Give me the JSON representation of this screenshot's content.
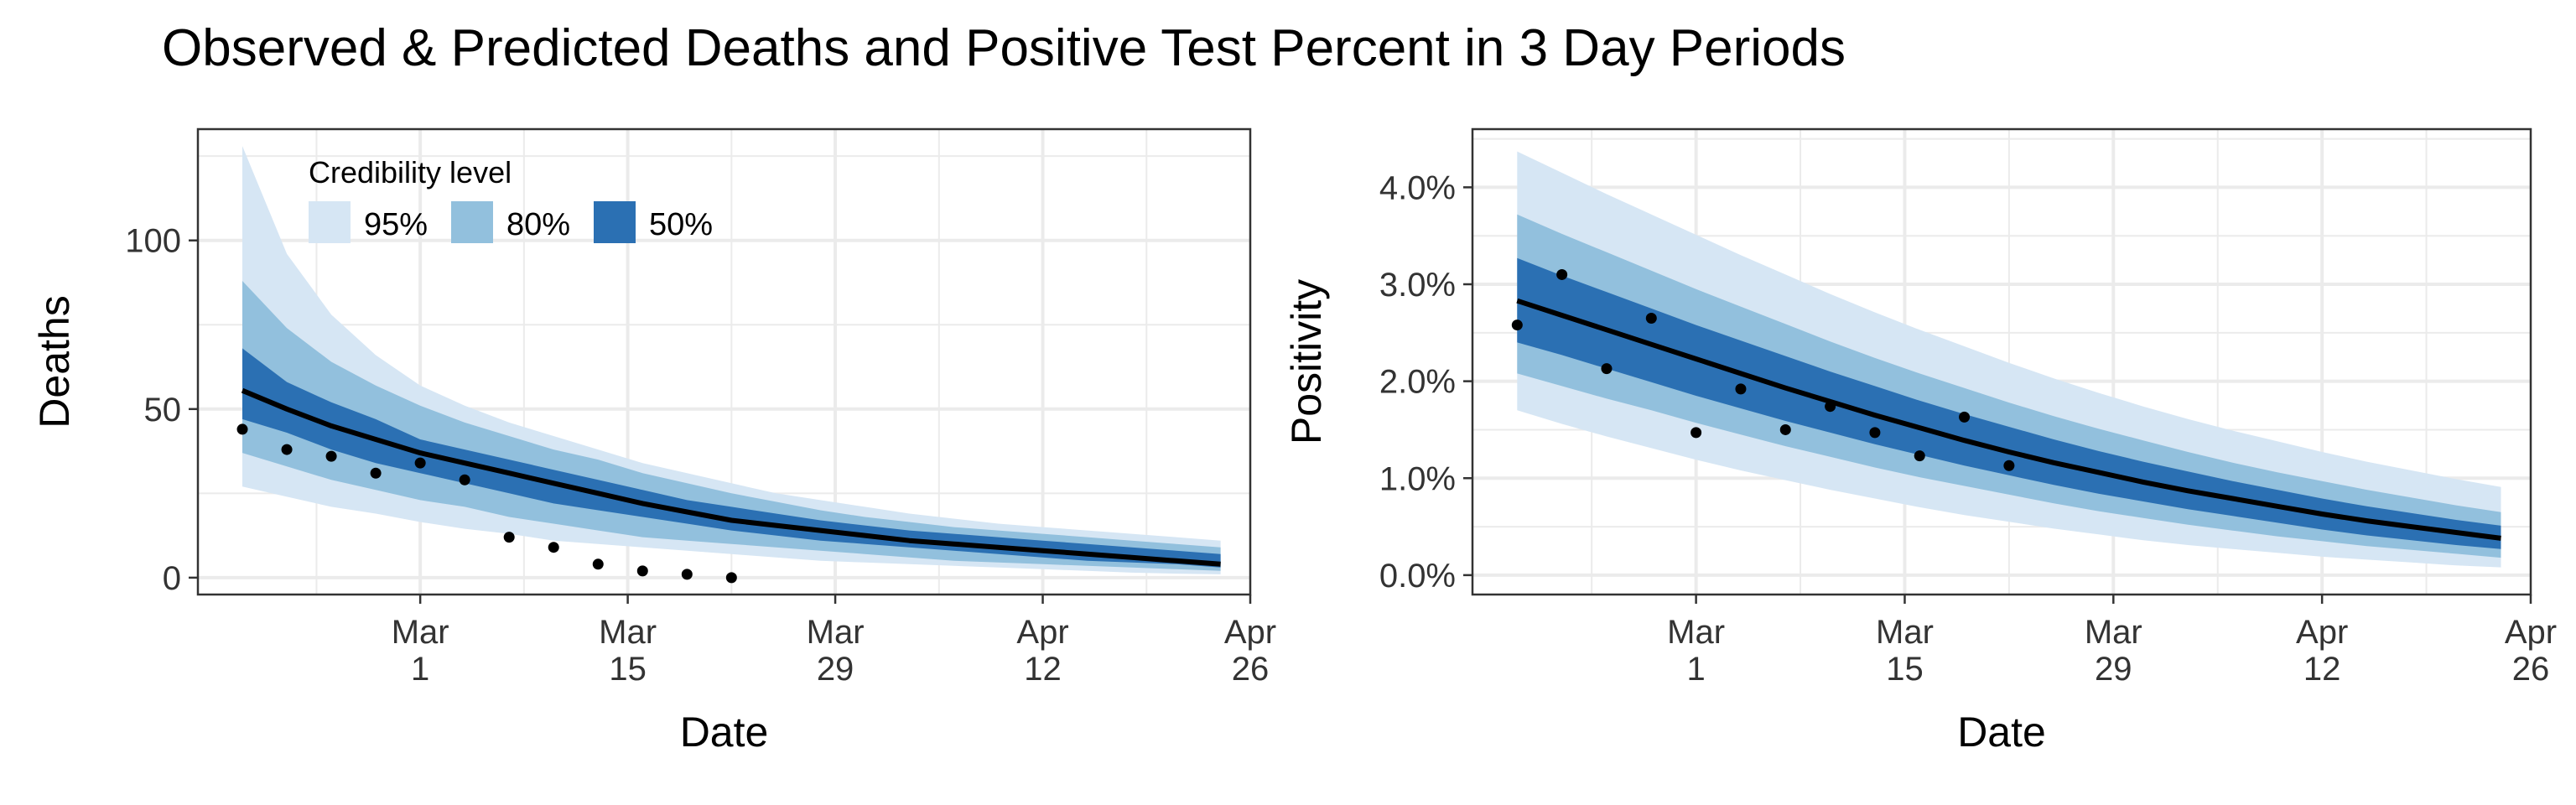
{
  "title": "Observed & Predicted Deaths and Positive Test Percent in 3 Day Periods",
  "colors": {
    "band95": "#d6e6f4",
    "band80": "#92c0dd",
    "band50": "#2b70b3",
    "median": "#000000",
    "points": "#000000"
  },
  "legend": {
    "title": "Credibility level",
    "placement": "top-left inside left panel",
    "entries": [
      {
        "label": "95%",
        "color": "#d6e6f4"
      },
      {
        "label": "80%",
        "color": "#92c0dd"
      },
      {
        "label": "50%",
        "color": "#2b70b3"
      }
    ]
  },
  "chart_data": [
    {
      "type": "area",
      "xlabel": "Date",
      "ylabel": "Deaths",
      "xlim": [
        "2021-02-14",
        "2021-04-26"
      ],
      "ylim": [
        -5,
        133
      ],
      "x_ticks": [
        {
          "date": "2021-03-01",
          "label": "Mar\n1"
        },
        {
          "date": "2021-03-15",
          "label": "Mar\n15"
        },
        {
          "date": "2021-03-29",
          "label": "Mar\n29"
        },
        {
          "date": "2021-04-12",
          "label": "Apr\n12"
        },
        {
          "date": "2021-04-26",
          "label": "Apr\n26"
        }
      ],
      "y_ticks": [
        {
          "value": 0,
          "label": "0"
        },
        {
          "value": 50,
          "label": "50"
        },
        {
          "value": 100,
          "label": "100"
        }
      ],
      "grid": true,
      "x": [
        "2021-02-17",
        "2021-02-20",
        "2021-02-23",
        "2021-02-26",
        "2021-03-01",
        "2021-03-04",
        "2021-03-07",
        "2021-03-10",
        "2021-03-13",
        "2021-03-16",
        "2021-03-19",
        "2021-03-22",
        "2021-03-25",
        "2021-03-28",
        "2021-03-31",
        "2021-04-03",
        "2021-04-06",
        "2021-04-09",
        "2021-04-12",
        "2021-04-15",
        "2021-04-18",
        "2021-04-21",
        "2021-04-24"
      ],
      "median": [
        55.5,
        50,
        45,
        41,
        37,
        34,
        31,
        28,
        25,
        22,
        19.5,
        17,
        15.5,
        14,
        12.5,
        11,
        10,
        9,
        8,
        7,
        6,
        5,
        4
      ],
      "band50": {
        "lower": [
          47,
          43,
          38,
          34,
          31,
          28,
          25,
          22,
          20,
          18,
          16,
          14,
          12.5,
          11,
          10,
          9,
          8,
          7,
          6,
          5,
          4.5,
          4,
          3
        ],
        "upper": [
          68,
          58,
          52,
          47,
          41,
          38,
          35,
          32,
          29,
          26,
          23,
          21,
          19,
          17,
          15.5,
          14,
          13,
          12,
          11,
          10,
          9,
          8,
          7
        ]
      },
      "band80": {
        "lower": [
          37,
          33,
          29,
          26,
          23,
          21,
          18,
          16,
          14,
          12,
          11,
          10,
          9,
          8,
          7,
          6,
          5,
          4.5,
          4,
          3.5,
          3,
          2.5,
          2
        ],
        "upper": [
          88,
          74,
          64,
          57,
          51,
          46,
          42,
          38,
          35,
          31,
          28,
          25,
          22.5,
          20,
          18,
          16.5,
          15,
          14,
          13,
          12,
          11,
          10,
          9
        ]
      },
      "band95": {
        "lower": [
          27,
          24,
          21,
          19,
          16.5,
          14.5,
          13,
          11,
          10,
          9,
          8,
          7,
          6,
          5,
          4.5,
          4,
          3.5,
          3,
          2.5,
          2,
          1.5,
          1.2,
          1
        ],
        "upper": [
          128,
          96,
          78,
          66,
          57,
          51,
          46,
          42,
          38,
          34,
          31,
          28,
          25,
          23,
          21,
          19,
          17.5,
          16,
          15,
          14,
          13,
          12,
          11
        ]
      },
      "points": [
        {
          "x": "2021-02-17",
          "y": 44
        },
        {
          "x": "2021-02-20",
          "y": 38
        },
        {
          "x": "2021-02-23",
          "y": 36
        },
        {
          "x": "2021-02-26",
          "y": 31
        },
        {
          "x": "2021-03-01",
          "y": 34
        },
        {
          "x": "2021-03-04",
          "y": 29
        },
        {
          "x": "2021-03-07",
          "y": 12
        },
        {
          "x": "2021-03-10",
          "y": 9
        },
        {
          "x": "2021-03-13",
          "y": 4
        },
        {
          "x": "2021-03-16",
          "y": 2
        },
        {
          "x": "2021-03-19",
          "y": 1
        },
        {
          "x": "2021-03-22",
          "y": 0
        }
      ]
    },
    {
      "type": "area",
      "xlabel": "Date",
      "ylabel": "Positivity",
      "xlim": [
        "2021-02-14",
        "2021-04-26"
      ],
      "ylim": [
        -0.2,
        4.6
      ],
      "x_ticks": [
        {
          "date": "2021-03-01",
          "label": "Mar\n1"
        },
        {
          "date": "2021-03-15",
          "label": "Mar\n15"
        },
        {
          "date": "2021-03-29",
          "label": "Mar\n29"
        },
        {
          "date": "2021-04-12",
          "label": "Apr\n12"
        },
        {
          "date": "2021-04-26",
          "label": "Apr\n26"
        }
      ],
      "y_ticks": [
        {
          "value": 0,
          "label": "0.0%"
        },
        {
          "value": 1,
          "label": "1.0%"
        },
        {
          "value": 2,
          "label": "2.0%"
        },
        {
          "value": 3,
          "label": "3.0%"
        },
        {
          "value": 4,
          "label": "4.0%"
        }
      ],
      "grid": true,
      "x": [
        "2021-02-17",
        "2021-02-20",
        "2021-02-23",
        "2021-02-26",
        "2021-03-01",
        "2021-03-04",
        "2021-03-07",
        "2021-03-10",
        "2021-03-13",
        "2021-03-16",
        "2021-03-19",
        "2021-03-22",
        "2021-03-25",
        "2021-03-28",
        "2021-03-31",
        "2021-04-03",
        "2021-04-06",
        "2021-04-09",
        "2021-04-12",
        "2021-04-15",
        "2021-04-18",
        "2021-04-21",
        "2021-04-24"
      ],
      "median": [
        2.83,
        2.68,
        2.53,
        2.38,
        2.23,
        2.08,
        1.93,
        1.79,
        1.65,
        1.52,
        1.39,
        1.27,
        1.16,
        1.06,
        0.96,
        0.87,
        0.79,
        0.71,
        0.63,
        0.56,
        0.5,
        0.44,
        0.38
      ],
      "band50": {
        "lower": [
          2.4,
          2.27,
          2.13,
          1.99,
          1.85,
          1.72,
          1.59,
          1.47,
          1.35,
          1.24,
          1.13,
          1.03,
          0.93,
          0.84,
          0.76,
          0.68,
          0.61,
          0.54,
          0.47,
          0.41,
          0.36,
          0.31,
          0.27
        ],
        "upper": [
          3.27,
          3.09,
          2.92,
          2.75,
          2.58,
          2.42,
          2.26,
          2.1,
          1.95,
          1.8,
          1.66,
          1.53,
          1.4,
          1.28,
          1.17,
          1.07,
          0.97,
          0.88,
          0.79,
          0.71,
          0.64,
          0.57,
          0.51
        ]
      },
      "band80": {
        "lower": [
          2.08,
          1.95,
          1.82,
          1.7,
          1.57,
          1.45,
          1.33,
          1.22,
          1.11,
          1.01,
          0.92,
          0.83,
          0.74,
          0.66,
          0.59,
          0.52,
          0.46,
          0.4,
          0.35,
          0.3,
          0.26,
          0.22,
          0.18
        ],
        "upper": [
          3.72,
          3.52,
          3.33,
          3.14,
          2.95,
          2.77,
          2.59,
          2.41,
          2.24,
          2.08,
          1.93,
          1.78,
          1.64,
          1.51,
          1.39,
          1.27,
          1.16,
          1.06,
          0.97,
          0.88,
          0.8,
          0.72,
          0.65
        ]
      },
      "band95": {
        "lower": [
          1.7,
          1.56,
          1.43,
          1.31,
          1.19,
          1.08,
          0.98,
          0.88,
          0.79,
          0.7,
          0.62,
          0.55,
          0.48,
          0.42,
          0.36,
          0.31,
          0.27,
          0.23,
          0.19,
          0.16,
          0.13,
          0.1,
          0.08
        ],
        "upper": [
          4.37,
          4.15,
          3.93,
          3.72,
          3.51,
          3.3,
          3.1,
          2.9,
          2.71,
          2.53,
          2.36,
          2.19,
          2.03,
          1.88,
          1.74,
          1.61,
          1.49,
          1.38,
          1.27,
          1.17,
          1.08,
          0.99,
          0.91
        ]
      },
      "points": [
        {
          "x": "2021-02-17",
          "y": 2.58
        },
        {
          "x": "2021-02-20",
          "y": 3.1
        },
        {
          "x": "2021-02-23",
          "y": 2.13
        },
        {
          "x": "2021-02-26",
          "y": 2.65
        },
        {
          "x": "2021-03-01",
          "y": 1.47
        },
        {
          "x": "2021-03-04",
          "y": 1.92
        },
        {
          "x": "2021-03-07",
          "y": 1.5
        },
        {
          "x": "2021-03-10",
          "y": 1.74
        },
        {
          "x": "2021-03-13",
          "y": 1.47
        },
        {
          "x": "2021-03-16",
          "y": 1.23
        },
        {
          "x": "2021-03-19",
          "y": 1.63
        },
        {
          "x": "2021-03-22",
          "y": 1.13
        }
      ]
    }
  ]
}
